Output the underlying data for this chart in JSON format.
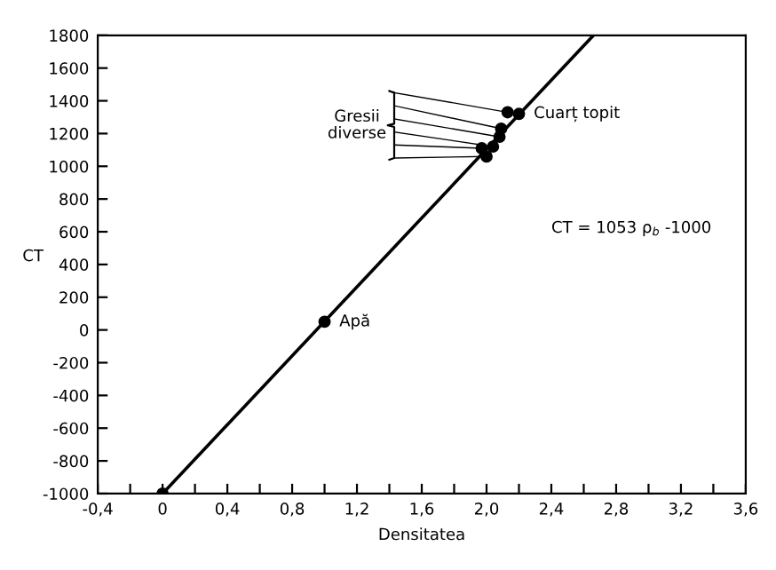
{
  "chart_data": {
    "type": "scatter",
    "xlabel": "Densitatea",
    "ylabel": "CT",
    "xlim": [
      -0.4,
      3.6
    ],
    "ylim": [
      -1000,
      1800
    ],
    "xticks": [
      {
        "value": -0.4,
        "label": "-0,4"
      },
      {
        "value": -0.2,
        "label": null
      },
      {
        "value": 0,
        "label": "0"
      },
      {
        "value": 0.2,
        "label": null
      },
      {
        "value": 0.4,
        "label": "0,4"
      },
      {
        "value": 0.6,
        "label": null
      },
      {
        "value": 0.8,
        "label": "0,8"
      },
      {
        "value": 1.0,
        "label": null
      },
      {
        "value": 1.2,
        "label": "1,2"
      },
      {
        "value": 1.4,
        "label": null
      },
      {
        "value": 1.6,
        "label": "1,6"
      },
      {
        "value": 1.8,
        "label": null
      },
      {
        "value": 2.0,
        "label": "2,0"
      },
      {
        "value": 2.2,
        "label": null
      },
      {
        "value": 2.4,
        "label": "2,4"
      },
      {
        "value": 2.6,
        "label": null
      },
      {
        "value": 2.8,
        "label": "2,8"
      },
      {
        "value": 3.0,
        "label": null
      },
      {
        "value": 3.2,
        "label": "3,2"
      },
      {
        "value": 3.4,
        "label": null
      },
      {
        "value": 3.6,
        "label": "3,6"
      }
    ],
    "yticks": [
      -1000,
      -800,
      -600,
      -400,
      -200,
      0,
      200,
      400,
      600,
      800,
      1000,
      1200,
      1400,
      1600,
      1800
    ],
    "grid": false,
    "series": [
      {
        "type": "line",
        "color": "#000000",
        "marker": "none",
        "x": [
          0,
          2.66
        ],
        "values": [
          -1000,
          1800
        ]
      },
      {
        "color": "#000000",
        "marker": "circle",
        "x": [
          0,
          1.0,
          2.2
        ],
        "values": [
          -1000,
          50,
          1320
        ]
      },
      {
        "color": "#000000",
        "marker": "circle",
        "x": [
          2.13,
          2.09,
          2.08,
          2.04,
          1.97,
          2.0
        ],
        "values": [
          1330,
          1230,
          1180,
          1120,
          1110,
          1060
        ]
      }
    ],
    "annotations": [
      {
        "text": "Apă",
        "x": 1.0,
        "y": 50
      },
      {
        "text": "Cuarț topit",
        "x": 2.2,
        "y": 1320
      },
      {
        "text": "Gresii\ndiverse",
        "x": 2.04,
        "y": 1120
      },
      "CT = 1053 ρ$_{b}$ -1000"
    ]
  }
}
